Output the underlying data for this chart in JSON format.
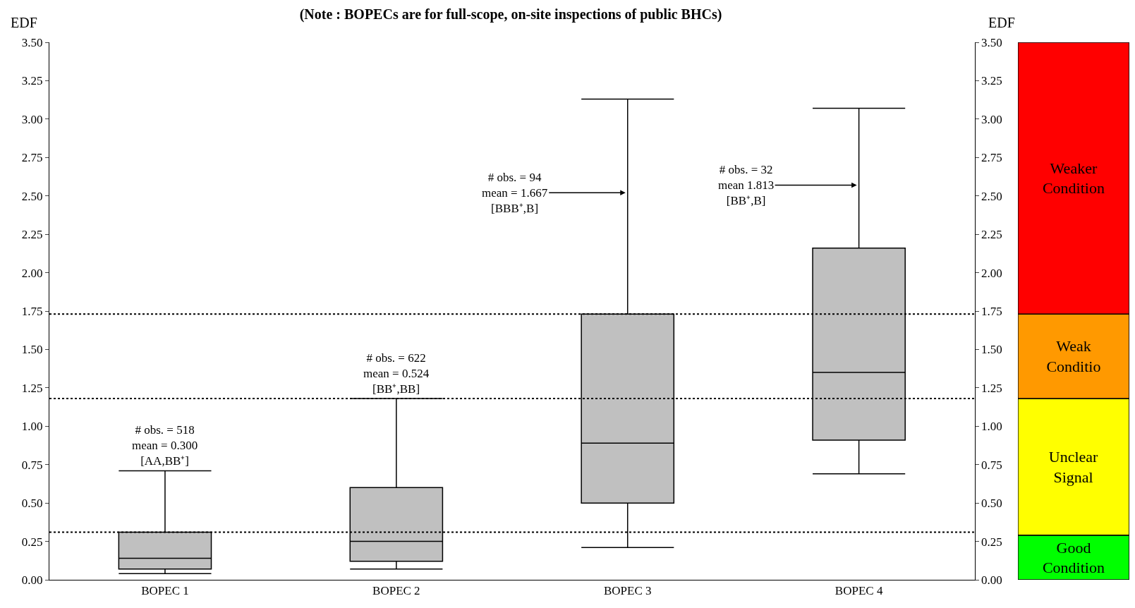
{
  "chart_data": [
    {
      "type": "box",
      "color": "#c0c0c0",
      "title": "(Note : BOPECs are for full-scope, on-site inspections of public BHCs)",
      "ylabel": "EDF",
      "y2label": "EDF",
      "categories": [
        "BOPEC 1",
        "BOPEC 2",
        "BOPEC 3",
        "BOPEC 4"
      ],
      "boxes": [
        {
          "low": 0.04,
          "q1": 0.07,
          "median": 0.14,
          "q3": 0.31,
          "high": 0.71
        },
        {
          "low": 0.07,
          "q1": 0.12,
          "median": 0.25,
          "q3": 0.6,
          "high": 1.18
        },
        {
          "low": 0.21,
          "q1": 0.5,
          "median": 0.89,
          "q3": 1.73,
          "high": 3.13
        },
        {
          "low": 0.69,
          "q1": 0.91,
          "median": 1.35,
          "q3": 2.16,
          "high": 3.07
        }
      ],
      "ylim": [
        0,
        3.5
      ],
      "y2lim": [
        0,
        3.5
      ],
      "yticks": [
        {
          "value": 0,
          "label": "0.00"
        },
        {
          "value": 0.25,
          "label": "0.25"
        },
        {
          "value": 0.5,
          "label": "0.50"
        },
        {
          "value": 0.75,
          "label": "0.75"
        },
        {
          "value": 1,
          "label": "1.00"
        },
        {
          "value": 1.25,
          "label": "1.25"
        },
        {
          "value": 1.5,
          "label": "1.50"
        },
        {
          "value": 1.75,
          "label": "1.75"
        },
        {
          "value": 2,
          "label": "2.00"
        },
        {
          "value": 2.25,
          "label": "2.25"
        },
        {
          "value": 2.5,
          "label": "2.50"
        },
        {
          "value": 2.75,
          "label": "2.75"
        },
        {
          "value": 3,
          "label": "3.00"
        },
        {
          "value": 3.25,
          "label": "3.25"
        },
        {
          "value": 3.5,
          "label": "3.50"
        }
      ],
      "y2ticks": [
        {
          "value": 0,
          "label": "0.00"
        },
        {
          "value": 0.25,
          "label": "0.25"
        },
        {
          "value": 0.5,
          "label": "0.50"
        },
        {
          "value": 0.75,
          "label": "0.75"
        },
        {
          "value": 1,
          "label": "1.00"
        },
        {
          "value": 1.25,
          "label": "1.25"
        },
        {
          "value": 1.5,
          "label": "1.50"
        },
        {
          "value": 1.75,
          "label": "1.75"
        },
        {
          "value": 2,
          "label": "2.00"
        },
        {
          "value": 2.25,
          "label": "2.25"
        },
        {
          "value": 2.5,
          "label": "2.50"
        },
        {
          "value": 2.75,
          "label": "2.75"
        },
        {
          "value": 3,
          "label": "3.00"
        },
        {
          "value": 3.25,
          "label": "3.25"
        },
        {
          "value": 3.5,
          "label": "3.50"
        }
      ],
      "ref_lines": [
        {
          "axis": "y",
          "value": 0.31,
          "line_style": "dotted",
          "color": "#000000"
        },
        {
          "axis": "y",
          "value": 1.18,
          "line_style": "dotted",
          "color": "#000000"
        },
        {
          "axis": "y",
          "value": 1.73,
          "line_style": "dotted",
          "color": "#000000"
        }
      ],
      "annotations": [
        "# obs. = 518\nmean = 0.300\n[AA,BB⁺]",
        "# obs. = 622\nmean = 0.524\n[BB⁺,BB]",
        {
          "text": "# obs. = 94\nmean = 1.667\n[BBB⁺,B]",
          "x": "BOPEC 3",
          "y": 2.52
        },
        {
          "text": "# obs. = 32\nmean 1.813\n[BB⁺,B]",
          "x": "BOPEC 4",
          "y": 2.57
        }
      ],
      "legend": false
    },
    {
      "type": "bar",
      "stacked": true,
      "categories": [
        null
      ],
      "series": [
        {
          "name": "Good Condition",
          "color": "#00ff00",
          "values": [
            0.29
          ]
        },
        {
          "name": "Unclear Signal",
          "color": "#ffff00",
          "values": [
            0.89
          ]
        },
        {
          "name": "Weak Conditio",
          "color": "#ff9900",
          "values": [
            0.55
          ]
        },
        {
          "name": "Weaker Condition",
          "color": "#ff0000",
          "values": [
            1.77
          ]
        }
      ],
      "ylim": [
        0,
        3.5
      ],
      "tick_labels": false,
      "legend": false
    }
  ]
}
